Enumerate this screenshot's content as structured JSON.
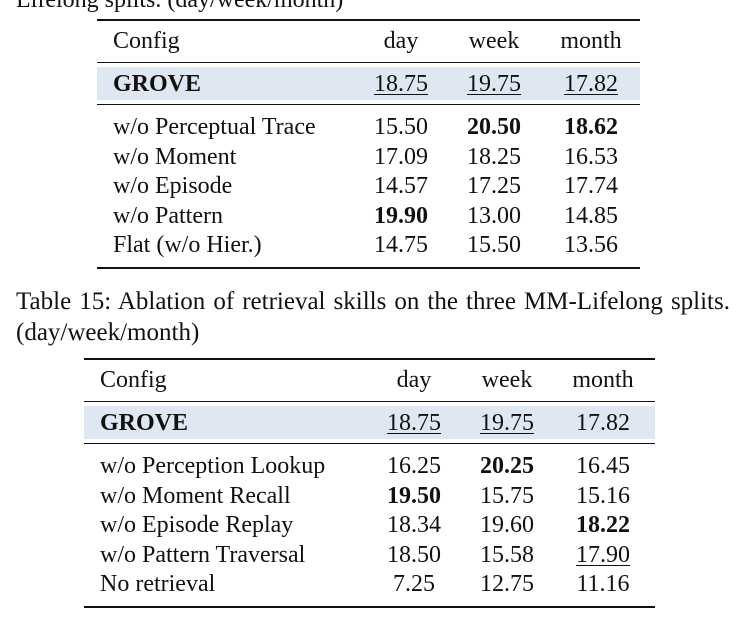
{
  "top_fragment": "Lifelong splits. (day/week/month)",
  "table1": {
    "header": [
      "Config",
      "day",
      "week",
      "month"
    ],
    "highlight": [
      "GROVE",
      "18.75",
      "19.75",
      "17.82"
    ],
    "rows": [
      [
        "w/o Perceptual Trace",
        "15.50",
        "20.50",
        "18.62"
      ],
      [
        "w/o Moment",
        "17.09",
        "18.25",
        "16.53"
      ],
      [
        "w/o Episode",
        "14.57",
        "17.25",
        "17.74"
      ],
      [
        "w/o Pattern",
        "19.90",
        "13.00",
        "14.85"
      ],
      [
        "Flat (w/o Hier.)",
        "14.75",
        "15.50",
        "13.56"
      ]
    ]
  },
  "caption": "Table 15: Ablation of retrieval skills on the three MM-Lifelong splits. (day/week/month)",
  "table2": {
    "header": [
      "Config",
      "day",
      "week",
      "month"
    ],
    "highlight": [
      "GROVE",
      "18.75",
      "19.75",
      "17.82"
    ],
    "rows": [
      [
        "w/o Perception Lookup",
        "16.25",
        "20.25",
        "16.45"
      ],
      [
        "w/o Moment Recall",
        "19.50",
        "15.75",
        "15.16"
      ],
      [
        "w/o Episode Replay",
        "18.34",
        "19.60",
        "18.22"
      ],
      [
        "w/o Pattern Traversal",
        "18.50",
        "15.58",
        "17.90"
      ],
      [
        "No retrieval",
        "7.25",
        "12.75",
        "11.16"
      ]
    ]
  }
}
